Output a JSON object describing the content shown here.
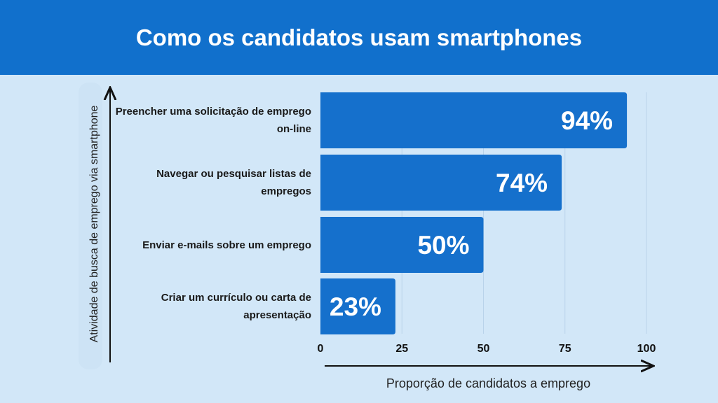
{
  "header": {
    "title": "Como os candidatos usam smartphones"
  },
  "chart_data": {
    "type": "bar",
    "orientation": "horizontal",
    "categories": [
      "Preencher uma solicitação de emprego on-line",
      "Navegar ou pesquisar listas de empregos",
      "Enviar e-mails sobre um emprego",
      "Criar um currículo ou carta de apresentação"
    ],
    "values": [
      94,
      74,
      50,
      23
    ],
    "data_labels": [
      "94%",
      "74%",
      "50%",
      "23%"
    ],
    "xlabel": "Proporção de candidatos a emprego",
    "ylabel": "Atividade de busca de emprego via smartphone",
    "xlim": [
      0,
      100
    ],
    "xticks": [
      "0",
      "25",
      "50",
      "75",
      "100"
    ],
    "grid": "vertical",
    "colors": {
      "bar": "#1570cc",
      "header": "#1170cc",
      "background": "#d2e7f8",
      "grid": "#b9d3ea"
    }
  }
}
